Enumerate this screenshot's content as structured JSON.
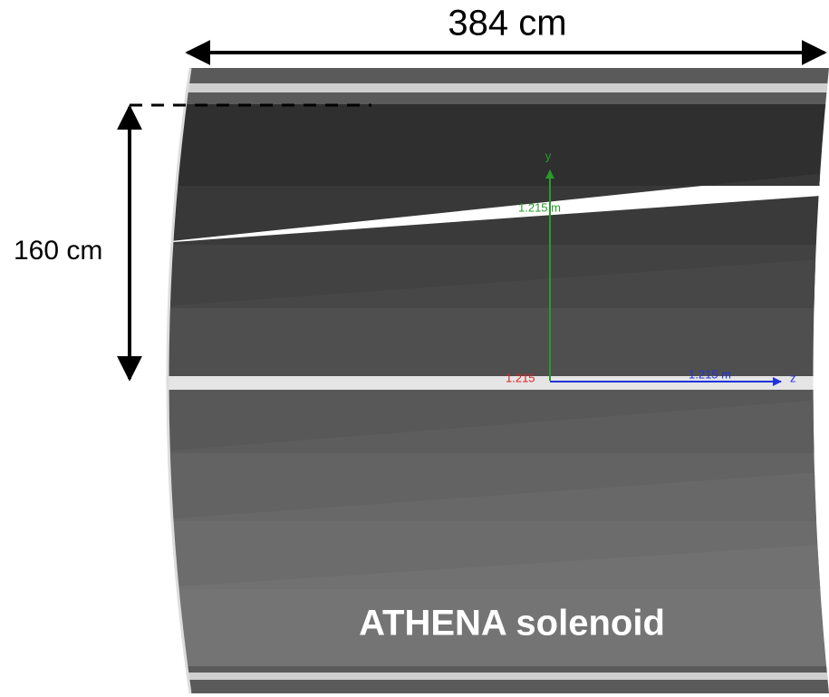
{
  "dimensions": {
    "length_label": "384 cm",
    "radius_label": "160 cm"
  },
  "title": "ATHENA solenoid",
  "axes": {
    "y_label": "y",
    "y_scale": "1.215 m",
    "x_scale": "1.215",
    "z_scale": "1.215 m",
    "z_label": "z"
  }
}
